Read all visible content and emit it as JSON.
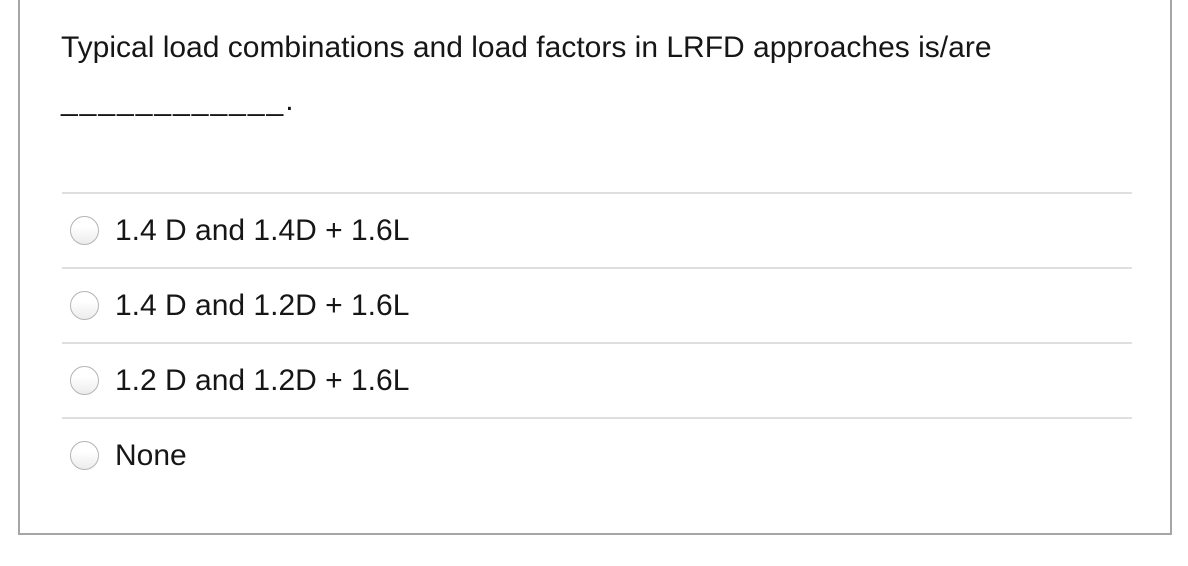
{
  "question": {
    "text": "Typical load combinations and load factors in LRFD approaches is/are",
    "blank": "____________."
  },
  "options": [
    {
      "label": "1.4 D and 1.4D + 1.6L",
      "selected": false
    },
    {
      "label": "1.4 D and 1.2D + 1.6L",
      "selected": false
    },
    {
      "label": "1.2 D and 1.2D + 1.6L",
      "selected": false
    },
    {
      "label": "None",
      "selected": false
    }
  ],
  "colors": {
    "text": "#161616",
    "card_border": "#a6a6a6",
    "divider": "#dfdfdf",
    "radio_border": "#b5b5b5",
    "background": "#ffffff"
  }
}
